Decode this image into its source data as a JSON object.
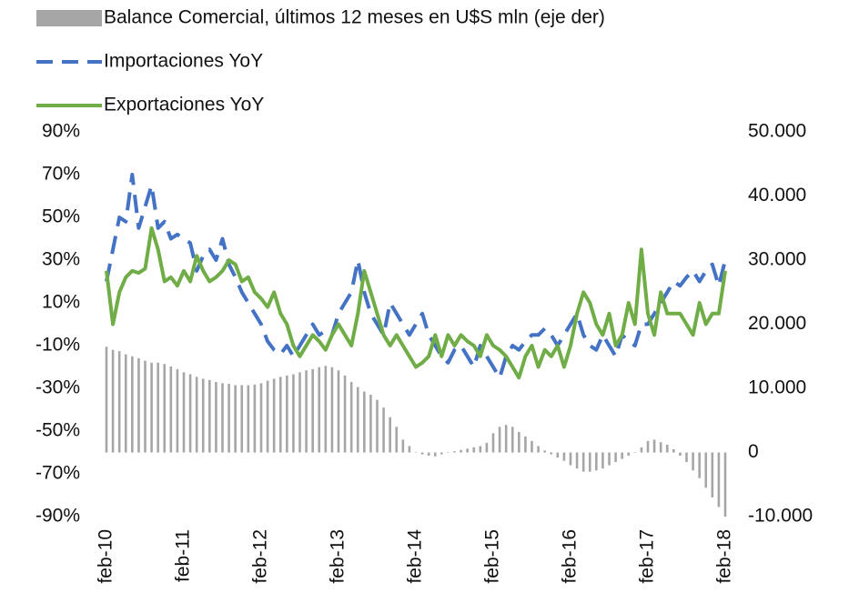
{
  "chart_data": {
    "type": "bar-line",
    "categories": [
      "feb-10",
      null,
      null,
      null,
      null,
      null,
      null,
      null,
      null,
      null,
      null,
      null,
      "feb-11",
      null,
      null,
      null,
      null,
      null,
      null,
      null,
      null,
      null,
      null,
      null,
      "feb-12",
      null,
      null,
      null,
      null,
      null,
      null,
      null,
      null,
      null,
      null,
      null,
      "feb-13",
      null,
      null,
      null,
      null,
      null,
      null,
      null,
      null,
      null,
      null,
      null,
      "feb-14",
      null,
      null,
      null,
      null,
      null,
      null,
      null,
      null,
      null,
      null,
      null,
      "feb-15",
      null,
      null,
      null,
      null,
      null,
      null,
      null,
      null,
      null,
      null,
      null,
      "feb-16",
      null,
      null,
      null,
      null,
      null,
      null,
      null,
      null,
      null,
      null,
      null,
      "feb-17",
      null,
      null,
      null,
      null,
      null,
      null,
      null,
      null,
      null,
      null,
      null,
      "feb-18"
    ],
    "series": [
      {
        "name": "Balance Comercial, últimos 12 meses en U$S mln (eje der)",
        "type": "bar",
        "axis": "y2",
        "color": "#a6a6a6",
        "values": [
          16500,
          16000,
          15800,
          15300,
          15000,
          14700,
          14300,
          14000,
          14000,
          13800,
          13400,
          13000,
          12500,
          12200,
          11800,
          11500,
          11300,
          11000,
          10800,
          10700,
          10500,
          10500,
          10500,
          10600,
          10800,
          11200,
          11500,
          11800,
          12000,
          12200,
          12500,
          12800,
          13000,
          13300,
          13500,
          13300,
          12800,
          12000,
          11000,
          10200,
          9500,
          9000,
          8200,
          7000,
          5500,
          4000,
          2000,
          1000,
          0,
          -300,
          -500,
          -600,
          -300,
          0,
          200,
          400,
          600,
          800,
          1000,
          1500,
          3000,
          4000,
          4300,
          4000,
          3200,
          2500,
          1800,
          1000,
          300,
          -300,
          -800,
          -1300,
          -2000,
          -2500,
          -3000,
          -3000,
          -2800,
          -2500,
          -2000,
          -1500,
          -1000,
          -500,
          0,
          800,
          1800,
          2000,
          1600,
          1200,
          500,
          -500,
          -1500,
          -2800,
          -4000,
          -5500,
          -7000,
          -8500,
          -10000
        ]
      },
      {
        "name": "Importaciones YoY",
        "type": "line",
        "dashed": true,
        "color": "#4472c4",
        "values": [
          20,
          35,
          50,
          48,
          70,
          45,
          55,
          65,
          45,
          48,
          40,
          42,
          40,
          38,
          25,
          32,
          35,
          30,
          40,
          28,
          22,
          15,
          10,
          5,
          0,
          -8,
          -12,
          -14,
          -10,
          -15,
          -10,
          -5,
          0,
          -5,
          -3,
          -5,
          5,
          10,
          15,
          30,
          15,
          5,
          0,
          -5,
          10,
          5,
          0,
          -5,
          0,
          5,
          -5,
          -10,
          -15,
          -18,
          -12,
          -10,
          -15,
          -20,
          -10,
          -15,
          -20,
          -25,
          -15,
          -10,
          -12,
          -8,
          -5,
          -5,
          -2,
          -5,
          -10,
          -5,
          0,
          5,
          -5,
          -10,
          -12,
          -5,
          -10,
          -15,
          -5,
          -8,
          -10,
          0,
          0,
          5,
          10,
          15,
          20,
          18,
          22,
          25,
          20,
          25,
          28,
          18,
          30
        ]
      },
      {
        "name": "Exportaciones YoY",
        "type": "line",
        "dashed": false,
        "color": "#70ad47",
        "values": [
          25,
          0,
          15,
          22,
          25,
          24,
          26,
          45,
          35,
          20,
          22,
          18,
          25,
          20,
          32,
          25,
          20,
          22,
          25,
          30,
          28,
          20,
          22,
          15,
          12,
          8,
          15,
          5,
          0,
          -10,
          -15,
          -10,
          -5,
          -8,
          -12,
          -5,
          0,
          -5,
          -10,
          5,
          25,
          15,
          5,
          -5,
          -10,
          -5,
          -10,
          -15,
          -20,
          -18,
          -15,
          -5,
          -15,
          -5,
          -10,
          -5,
          -8,
          -10,
          -15,
          -5,
          -10,
          -12,
          -15,
          -20,
          -25,
          -15,
          -10,
          -20,
          -12,
          -15,
          -10,
          -20,
          -10,
          5,
          15,
          10,
          0,
          -5,
          5,
          -10,
          -5,
          10,
          0,
          35,
          5,
          -5,
          15,
          5,
          5,
          5,
          0,
          -5,
          10,
          0,
          5,
          5,
          25
        ]
      }
    ],
    "ylim": [
      -90,
      90
    ],
    "yticks": [
      {
        "value": 90,
        "label": "90%"
      },
      {
        "value": 70,
        "label": "70%"
      },
      {
        "value": 50,
        "label": "50%"
      },
      {
        "value": 30,
        "label": "30%"
      },
      {
        "value": 10,
        "label": "10%"
      },
      {
        "value": -10,
        "label": "-10%"
      },
      {
        "value": -30,
        "label": "-30%"
      },
      {
        "value": -50,
        "label": "-50%"
      },
      {
        "value": -70,
        "label": "-70%"
      },
      {
        "value": -90,
        "label": "-90%"
      }
    ],
    "y2lim": [
      -10000,
      50000
    ],
    "y2ticks": [
      {
        "value": 50000,
        "label": "50.000"
      },
      {
        "value": 40000,
        "label": "40.000"
      },
      {
        "value": 30000,
        "label": "30.000"
      },
      {
        "value": 20000,
        "label": "20.000"
      },
      {
        "value": 10000,
        "label": "10.000"
      },
      0,
      {
        "value": -10000,
        "label": "-10.000"
      }
    ],
    "grid": false,
    "legend": "top"
  }
}
